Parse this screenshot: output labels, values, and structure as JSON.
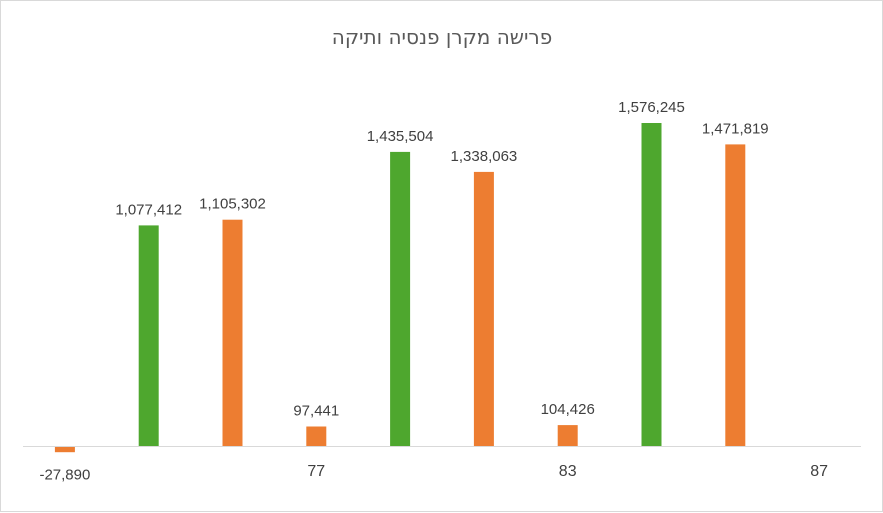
{
  "chart_data": {
    "type": "bar",
    "title": "פרישה מקרן פנסיה ותיקה",
    "categories": [
      "",
      "",
      "",
      "77",
      "",
      "",
      "83",
      "",
      "",
      "87"
    ],
    "values": [
      -27890,
      1077412,
      1105302,
      97441,
      1435504,
      1338063,
      104426,
      1576245,
      1471819,
      null
    ],
    "bar_colors": [
      "#ED7D31",
      "#4EA72E",
      "#ED7D31",
      "#ED7D31",
      "#4EA72E",
      "#ED7D31",
      "#ED7D31",
      "#4EA72E",
      "#ED7D31",
      null
    ],
    "data_labels": [
      "-27,890",
      "1,077,412",
      "1,105,302",
      "97,441",
      "1,435,504",
      "1,338,063",
      "104,426",
      "1,576,245",
      "1,471,819",
      ""
    ],
    "xlabel": "",
    "ylabel": "",
    "ylim": [
      -30000,
      1700000
    ],
    "grid": false,
    "legend": "none"
  }
}
